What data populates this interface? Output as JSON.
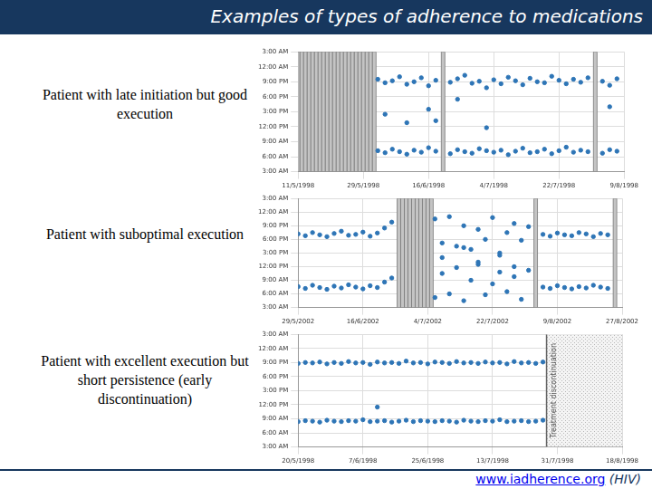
{
  "title": "Examples of types of adherence to medications",
  "footer": {
    "link": "www.iadherence.org",
    "note": "(HIV)"
  },
  "chart_data": [
    {
      "type": "scatter",
      "label": "Patient with late initiation but good execution",
      "color": "#2e75b6",
      "marker": "circle",
      "grid": true,
      "xlim": [
        0,
        90
      ],
      "xticks": [
        {
          "value": 0,
          "label": "11/5/1998"
        },
        {
          "value": 18,
          "label": "29/5/1998"
        },
        {
          "value": 36,
          "label": "16/6/1998"
        },
        {
          "value": 54,
          "label": "4/7/1998"
        },
        {
          "value": 72,
          "label": "22/7/1998"
        },
        {
          "value": 90,
          "label": "9/8/1998"
        }
      ],
      "ylim": [
        3,
        27
      ],
      "yticks": [
        {
          "value": 3,
          "label": "3:00 AM"
        },
        {
          "value": 6,
          "label": "6:00 AM"
        },
        {
          "value": 9,
          "label": "9:00 AM"
        },
        {
          "value": 12,
          "label": "12:00 PM"
        },
        {
          "value": 15,
          "label": "3:00 PM"
        },
        {
          "value": 18,
          "label": "6:00 PM"
        },
        {
          "value": 21,
          "label": "9:00 PM"
        },
        {
          "value": 24,
          "label": "12:00 AM"
        },
        {
          "value": 27,
          "label": "3:00 AM"
        }
      ],
      "missed_doses": [
        [
          0,
          21
        ],
        [
          40,
          40
        ],
        [
          82,
          82
        ]
      ],
      "x": [
        22,
        24,
        26,
        28,
        30,
        32,
        34,
        36,
        38,
        42,
        44,
        46,
        48,
        50,
        52,
        54,
        56,
        58,
        60,
        62,
        64,
        66,
        68,
        70,
        72,
        74,
        76,
        78,
        80,
        84,
        86,
        88,
        22,
        24,
        26,
        28,
        30,
        32,
        34,
        36,
        38,
        42,
        44,
        46,
        48,
        50,
        52,
        54,
        56,
        58,
        60,
        62,
        64,
        66,
        68,
        70,
        72,
        74,
        76,
        78,
        80,
        84,
        86,
        88,
        24,
        30,
        36,
        38,
        44,
        52,
        86
      ],
      "values": [
        21.5,
        20.8,
        21.2,
        22.0,
        20.5,
        21.0,
        21.8,
        20.2,
        21.3,
        20.9,
        21.6,
        22.3,
        20.7,
        21.1,
        19.8,
        21.4,
        20.6,
        21.9,
        21.2,
        20.4,
        21.7,
        21.0,
        20.8,
        22.1,
        21.3,
        20.6,
        21.5,
        20.9,
        21.8,
        21.1,
        20.3,
        21.6,
        7.2,
        6.8,
        7.5,
        7.0,
        6.5,
        7.3,
        6.9,
        7.8,
        7.1,
        6.6,
        7.4,
        7.0,
        6.7,
        7.6,
        7.2,
        6.9,
        7.3,
        6.4,
        7.1,
        7.7,
        6.8,
        7.0,
        7.5,
        6.6,
        7.2,
        7.9,
        6.9,
        7.3,
        7.0,
        6.7,
        7.4,
        7.1,
        14.5,
        12.8,
        15.5,
        13.2,
        17.5,
        11.8,
        16.0
      ]
    },
    {
      "type": "scatter",
      "label": "Patient with suboptimal execution",
      "color": "#2e75b6",
      "marker": "circle",
      "grid": true,
      "xlim": [
        0,
        90
      ],
      "xticks": [
        {
          "value": 0,
          "label": "29/5/2002"
        },
        {
          "value": 18,
          "label": "16/6/2002"
        },
        {
          "value": 36,
          "label": "4/7/2002"
        },
        {
          "value": 54,
          "label": "22/7/2002"
        },
        {
          "value": 72,
          "label": "9/8/2002"
        },
        {
          "value": 90,
          "label": "27/8/2002"
        }
      ],
      "ylim": [
        3,
        27
      ],
      "yticks": [
        {
          "value": 3,
          "label": "3:00 AM"
        },
        {
          "value": 6,
          "label": "6:00 AM"
        },
        {
          "value": 9,
          "label": "9:00 AM"
        },
        {
          "value": 12,
          "label": "12:00 PM"
        },
        {
          "value": 15,
          "label": "3:00 PM"
        },
        {
          "value": 18,
          "label": "6:00 PM"
        },
        {
          "value": 21,
          "label": "9:00 PM"
        },
        {
          "value": 24,
          "label": "12:00 AM"
        },
        {
          "value": 27,
          "label": "3:00 AM"
        }
      ],
      "missed_doses": [
        [
          28,
          37
        ],
        [
          66,
          66
        ],
        [
          88,
          88
        ]
      ],
      "x": [
        0,
        2,
        4,
        6,
        8,
        10,
        12,
        14,
        16,
        18,
        20,
        22,
        24,
        26,
        38,
        40,
        42,
        44,
        46,
        48,
        50,
        52,
        54,
        56,
        58,
        60,
        62,
        64,
        68,
        70,
        72,
        74,
        76,
        78,
        80,
        82,
        84,
        86,
        0,
        2,
        4,
        6,
        8,
        10,
        12,
        14,
        16,
        18,
        20,
        22,
        24,
        26,
        38,
        40,
        42,
        44,
        46,
        48,
        50,
        52,
        54,
        56,
        58,
        60,
        62,
        64,
        68,
        70,
        72,
        74,
        76,
        78,
        80,
        82,
        84,
        86,
        40,
        46,
        50,
        56,
        60
      ],
      "values": [
        19.2,
        18.8,
        19.5,
        19.0,
        18.6,
        19.3,
        19.8,
        18.9,
        19.1,
        19.6,
        18.7,
        19.4,
        20.5,
        21.8,
        22.5,
        17.2,
        23.0,
        16.5,
        21.0,
        15.8,
        20.2,
        18.0,
        22.8,
        14.5,
        19.5,
        21.5,
        17.8,
        20.8,
        19.1,
        18.7,
        19.4,
        19.0,
        18.8,
        19.5,
        19.2,
        18.6,
        19.3,
        19.0,
        7.6,
        7.2,
        7.9,
        7.4,
        7.0,
        7.7,
        7.3,
        8.0,
        7.5,
        7.1,
        7.8,
        7.4,
        8.6,
        9.5,
        5.2,
        10.5,
        6.0,
        11.8,
        4.5,
        9.0,
        12.5,
        5.8,
        8.2,
        10.8,
        6.5,
        9.8,
        4.8,
        11.2,
        7.5,
        7.2,
        7.8,
        7.4,
        7.1,
        7.6,
        7.3,
        7.9,
        7.5,
        7.2,
        14.0,
        16.2,
        13.0,
        15.0,
        12.0
      ]
    },
    {
      "type": "scatter",
      "label": "Patient with excellent execution but short persistence (early discontinuation)",
      "color": "#2e75b6",
      "marker": "circle",
      "grid": true,
      "xlim": [
        0,
        90
      ],
      "xticks": [
        {
          "value": 0,
          "label": "20/5/1998"
        },
        {
          "value": 18,
          "label": "7/6/1998"
        },
        {
          "value": 36,
          "label": "25/6/1998"
        },
        {
          "value": 54,
          "label": "13/7/1998"
        },
        {
          "value": 72,
          "label": "31/7/1998"
        },
        {
          "value": 90,
          "label": "18/8/1998"
        }
      ],
      "ylim": [
        3,
        27
      ],
      "yticks": [
        {
          "value": 3,
          "label": "3:00 AM"
        },
        {
          "value": 6,
          "label": "6:00 AM"
        },
        {
          "value": 9,
          "label": "9:00 AM"
        },
        {
          "value": 12,
          "label": "12:00 PM"
        },
        {
          "value": 15,
          "label": "3:00 PM"
        },
        {
          "value": 18,
          "label": "6:00 PM"
        },
        {
          "value": 21,
          "label": "9:00 PM"
        },
        {
          "value": 24,
          "label": "12:00 AM"
        },
        {
          "value": 27,
          "label": "3:00 AM"
        }
      ],
      "discontinuation": {
        "range": [
          69,
          90
        ],
        "label": "Treatment discontinuation"
      },
      "x": [
        0,
        2,
        4,
        6,
        8,
        10,
        12,
        14,
        16,
        18,
        20,
        22,
        24,
        26,
        28,
        30,
        32,
        34,
        36,
        38,
        40,
        42,
        44,
        46,
        48,
        50,
        52,
        54,
        56,
        58,
        60,
        62,
        64,
        66,
        68,
        0,
        2,
        4,
        6,
        8,
        10,
        12,
        14,
        16,
        18,
        20,
        22,
        24,
        26,
        28,
        30,
        32,
        34,
        36,
        38,
        40,
        42,
        44,
        46,
        48,
        50,
        52,
        54,
        56,
        58,
        60,
        62,
        64,
        66,
        68,
        22
      ],
      "values": [
        20.8,
        21.0,
        20.9,
        21.1,
        20.7,
        21.0,
        20.8,
        21.2,
        20.9,
        21.0,
        20.6,
        21.1,
        20.9,
        21.0,
        20.8,
        21.3,
        20.9,
        21.0,
        20.7,
        21.1,
        21.0,
        20.8,
        21.2,
        20.9,
        21.0,
        20.8,
        21.1,
        20.9,
        21.0,
        20.7,
        21.2,
        20.9,
        21.0,
        20.8,
        21.1,
        8.4,
        8.6,
        8.5,
        8.3,
        8.7,
        8.5,
        8.4,
        8.6,
        8.5,
        8.8,
        8.4,
        8.5,
        8.6,
        8.3,
        8.5,
        8.7,
        8.4,
        8.6,
        8.5,
        8.4,
        8.6,
        8.5,
        8.3,
        8.7,
        8.5,
        8.4,
        8.6,
        8.5,
        8.8,
        8.4,
        8.5,
        8.6,
        8.4,
        8.5,
        8.7,
        11.5
      ]
    }
  ]
}
